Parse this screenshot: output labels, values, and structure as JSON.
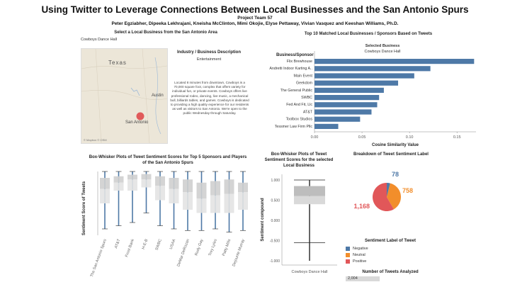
{
  "header": {
    "title": "Using Twitter to Leverage Connections Between Local Businesses and the San Antonio Spurs",
    "team": "Project Team 57",
    "authors": "Peter Egziabher, Dipeeka Lekhrajani, Kneisha McClinton, Mimi Okojie, Elyse Pettaway, Vivian Vasquez and Keeshan Williams, Ph.D."
  },
  "selector": {
    "label": "Select a Local Business from the San Antonio  Area",
    "value": "Cowboys Dance Hall"
  },
  "map": {
    "state_label": "Texas",
    "city_austin": "Austin",
    "city_sa": "San Antonio",
    "attribution": "© Mapbox © OSM",
    "marker_color": "#e05a5a"
  },
  "industry": {
    "title": "Industry / Business Description",
    "category": "Entertainment",
    "description": "Located 8 minutes from downtown, Cowboys is a 70,000 square foot, complex that offers variety for individual fun, or private events. Cowboys offers live professional rodeo, dancing, live music, a mechanical bull, billiards tables, and games. Cowboys is dedicated to providing a high quality experience for our residents as well as visitors to San Antonio. We're open to the public Wednesday through Saturday."
  },
  "top10": {
    "title": "Top 10 Matched Local Businesses / Sponsors Based on Tweets",
    "selected_label": "Selected Business",
    "selected_value": "Cowboys Dance Hall",
    "col_header": "Business/Sponsor",
    "xlabel": "Cosine Similarity Value",
    "ticks": [
      "0.00",
      "0.05",
      "0.10",
      "0.15"
    ]
  },
  "boxwhisker_sponsors": {
    "title_line1": "Box-Whisker Plots of Tweet Sentiment Scores for Top 5 Sponsors and Players",
    "title_line2": "of the San Antonio Spurs",
    "ylabel": "Sentiment Score of Tweets",
    "categories": [
      "The San Antonio Spurs",
      "AT&T",
      "Frost Bank",
      "H-E-B",
      "SWBC",
      "USAA",
      "DeMar DeRozan",
      "Rudy Gay",
      "Trey Lyles",
      "Patty Mills",
      "Dejounte Murray"
    ]
  },
  "boxwhisker_local": {
    "title_line1": "Box-Whisker Plots of Tweet",
    "title_line2": "Sentiment Scores for the selected",
    "title_line3": "Local Business",
    "ylabel": "Sentiment compound",
    "ticks": [
      "1.000",
      "0.500",
      "0.000",
      "-0.500",
      "-1.000"
    ],
    "category": "Cowboys Dance Hall"
  },
  "pie": {
    "title": "Breakdown of Tweet Sentiment Label",
    "legend_title": "Sentiment Label of Tweet",
    "tweets_title": "Number of Tweets Analyzed",
    "tweets_count": "2,004",
    "colors": {
      "negative": "#4e79a7",
      "neutral": "#f28e2b",
      "positive": "#e15759"
    }
  },
  "chart_data": [
    {
      "type": "bar",
      "orientation": "horizontal",
      "title": "Top 10 Matched Local Businesses / Sponsors Based on Tweets",
      "xlabel": "Cosine Similarity Value",
      "categories": [
        "Flix Brewhouse",
        "Andretti Indoor Karting A..",
        "Main Event",
        "Geekdom",
        "The General Public",
        "SWBC",
        "Fed And Fit, Llc",
        "AT&T",
        "Toolbox Studios",
        "Tessmer Law Firm Pllc"
      ],
      "values": [
        0.168,
        0.122,
        0.105,
        0.088,
        0.073,
        0.068,
        0.066,
        0.06,
        0.048,
        0.025
      ],
      "xlim": [
        0,
        0.17
      ],
      "color": "#4e79a7"
    },
    {
      "type": "box",
      "title": "Box-Whisker Plots of Tweet Sentiment Scores for Top 5 Sponsors and Players of the San Antonio Spurs",
      "ylabel": "Sentiment Score of Tweets",
      "categories": [
        "The San Antonio Spurs",
        "AT&T",
        "Frost Bank",
        "H-E-B",
        "SWBC",
        "USAA",
        "DeMar DeRozan",
        "Rudy Gay",
        "Trey Lyles",
        "Patty Mills",
        "Dejounte Murray"
      ],
      "q1": [
        0.0,
        0.4,
        0.4,
        0.5,
        0.1,
        0.0,
        -0.2,
        -0.3,
        -0.3,
        -0.3,
        -0.2
      ],
      "median": [
        0.45,
        0.65,
        0.75,
        0.75,
        0.55,
        0.45,
        0.35,
        0.15,
        0.25,
        0.3,
        0.35
      ],
      "q3": [
        0.8,
        0.85,
        0.9,
        0.92,
        0.85,
        0.8,
        0.75,
        0.65,
        0.7,
        0.75,
        0.65
      ],
      "whisker_low": [
        -0.8,
        -0.7,
        -0.6,
        -0.3,
        -0.7,
        -0.8,
        -0.85,
        -0.85,
        -0.8,
        -0.9,
        -0.85
      ],
      "whisker_high": [
        1.0,
        1.0,
        1.0,
        1.0,
        1.0,
        1.0,
        1.0,
        1.0,
        1.0,
        1.0,
        1.0
      ]
    },
    {
      "type": "box",
      "title": "Box-Whisker Plots of Tweet Sentiment Scores for the selected Local Business",
      "ylabel": "Sentiment compound",
      "categories": [
        "Cowboys Dance Hall"
      ],
      "q1": [
        0.4
      ],
      "median": [
        0.6
      ],
      "q3": [
        0.85
      ],
      "whisker_low": [
        -0.55
      ],
      "whisker_high": [
        1.0
      ],
      "ylim": [
        -1,
        1
      ]
    },
    {
      "type": "pie",
      "title": "Breakdown of Tweet Sentiment Label",
      "labels": [
        "Negative",
        "Neutral",
        "Positive"
      ],
      "values": [
        78,
        758,
        1168
      ],
      "value_labels": [
        "78",
        "758",
        "1,168"
      ],
      "colors": [
        "#4e79a7",
        "#f28e2b",
        "#e15759"
      ]
    }
  ]
}
